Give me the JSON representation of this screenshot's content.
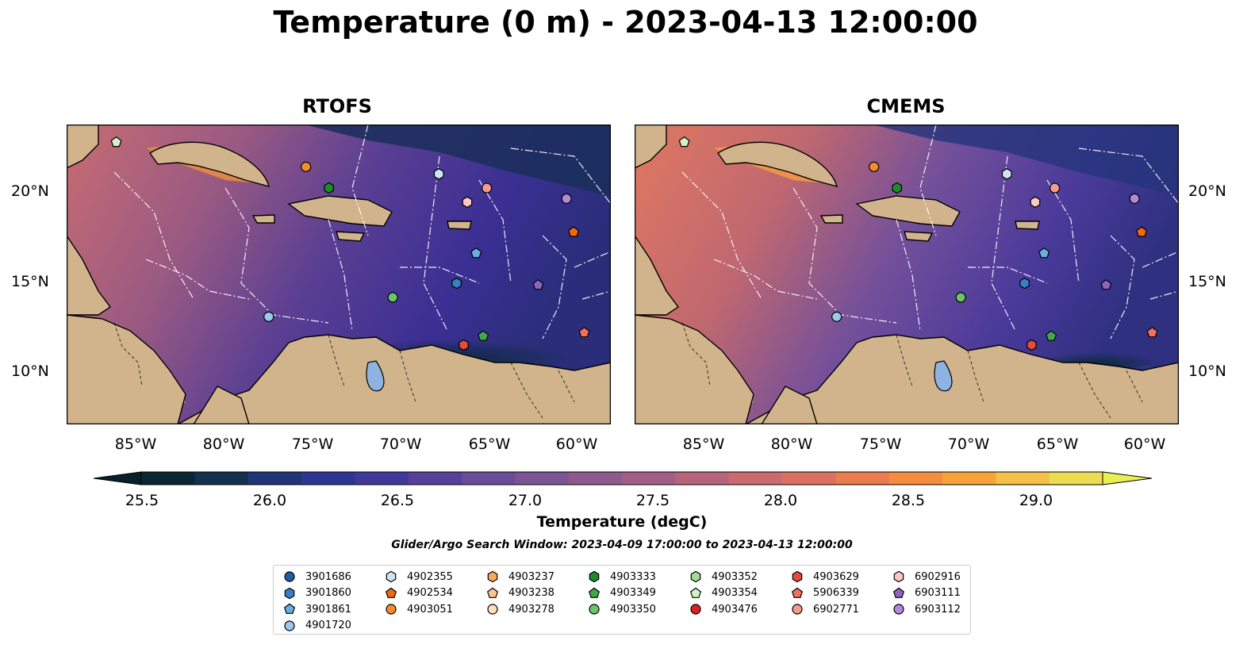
{
  "title": "Temperature (0 m) - 2023-04-13 12:00:00",
  "panels": [
    {
      "title": "RTOFS"
    },
    {
      "title": "CMEMS"
    }
  ],
  "axes": {
    "lat_labels": [
      "20°N",
      "15°N",
      "10°N"
    ],
    "lon_labels": [
      "85°W",
      "80°W",
      "75°W",
      "70°W",
      "65°W",
      "60°W"
    ],
    "lon_range": [
      -88.5,
      -57.8
    ],
    "lat_range": [
      7,
      24
    ]
  },
  "colorbar": {
    "label": "Temperature (degC)",
    "ticks": [
      "25.5",
      "26.0",
      "26.5",
      "27.0",
      "27.5",
      "28.0",
      "28.5",
      "29.0"
    ],
    "tick_values": [
      25.5,
      26.0,
      26.5,
      27.0,
      27.5,
      28.0,
      28.5,
      29.0
    ],
    "range": [
      25.25,
      29.25
    ],
    "colormap": "thermal",
    "extend": "both"
  },
  "search_window": "Glider/Argo Search Window: 2023-04-09 17:00:00 to 2023-04-13 12:00:00",
  "colors": {
    "land": "#d2b48c",
    "lake": "#8fb3e0",
    "ocean_low": "#0a2a3a",
    "ocean_high": "#f0f050"
  },
  "legend": [
    {
      "id": "3901686",
      "marker": "circle",
      "color": "#1f5fa6"
    },
    {
      "id": "3901860",
      "marker": "hexagon",
      "color": "#3a7fc6"
    },
    {
      "id": "3901861",
      "marker": "pentagon",
      "color": "#6aaee0"
    },
    {
      "id": "4901720",
      "marker": "circle",
      "color": "#9cc8ec"
    },
    {
      "id": "4902355",
      "marker": "hexagon",
      "color": "#cfe3f5"
    },
    {
      "id": "4902534",
      "marker": "pentagon",
      "color": "#ee6a10"
    },
    {
      "id": "4903051",
      "marker": "circle",
      "color": "#f58c2c"
    },
    {
      "id": "4903237",
      "marker": "hexagon",
      "color": "#f9a85c"
    },
    {
      "id": "4903238",
      "marker": "pentagon",
      "color": "#fbc690"
    },
    {
      "id": "4903278",
      "marker": "circle",
      "color": "#fde0c0"
    },
    {
      "id": "4903333",
      "marker": "hexagon",
      "color": "#1d8a2c"
    },
    {
      "id": "4903349",
      "marker": "pentagon",
      "color": "#3fa84a"
    },
    {
      "id": "4903350",
      "marker": "circle",
      "color": "#6cc46a"
    },
    {
      "id": "4903352",
      "marker": "hexagon",
      "color": "#a2dc96"
    },
    {
      "id": "4903354",
      "marker": "pentagon",
      "color": "#d3f0c8"
    },
    {
      "id": "4903476",
      "marker": "circle",
      "color": "#d9231f"
    },
    {
      "id": "4903629",
      "marker": "hexagon",
      "color": "#e34a40"
    },
    {
      "id": "5906339",
      "marker": "pentagon",
      "color": "#f07062"
    },
    {
      "id": "6902771",
      "marker": "circle",
      "color": "#f59a90"
    },
    {
      "id": "6902916",
      "marker": "hexagon",
      "color": "#fbc8c4"
    },
    {
      "id": "6903111",
      "marker": "pentagon",
      "color": "#8e62c0"
    },
    {
      "id": "6903112",
      "marker": "circle",
      "color": "#b08ad6"
    }
  ],
  "floats": [
    {
      "lon": -85.7,
      "lat": 23.0,
      "marker": "pentagon",
      "color": "#d3f0c8"
    },
    {
      "lon": -75.0,
      "lat": 21.6,
      "marker": "circle",
      "color": "#f58c2c"
    },
    {
      "lon": -73.7,
      "lat": 20.4,
      "marker": "hexagon",
      "color": "#1d8a2c"
    },
    {
      "lon": -67.5,
      "lat": 21.2,
      "marker": "hexagon",
      "color": "#cfe3f5"
    },
    {
      "lon": -64.8,
      "lat": 20.4,
      "marker": "circle",
      "color": "#f59a90"
    },
    {
      "lon": -65.9,
      "lat": 19.6,
      "marker": "hexagon",
      "color": "#fbc8c4"
    },
    {
      "lon": -60.3,
      "lat": 19.8,
      "marker": "circle",
      "color": "#b08ad6"
    },
    {
      "lon": -59.9,
      "lat": 17.9,
      "marker": "pentagon",
      "color": "#ee6a10"
    },
    {
      "lon": -65.4,
      "lat": 16.7,
      "marker": "pentagon",
      "color": "#6aaee0"
    },
    {
      "lon": -66.5,
      "lat": 15.0,
      "marker": "hexagon",
      "color": "#3a7fc6"
    },
    {
      "lon": -61.9,
      "lat": 14.9,
      "marker": "pentagon",
      "color": "#8e62c0"
    },
    {
      "lon": -70.1,
      "lat": 14.2,
      "marker": "circle",
      "color": "#6cc46a"
    },
    {
      "lon": -77.1,
      "lat": 13.1,
      "marker": "circle",
      "color": "#9cc8ec"
    },
    {
      "lon": -59.3,
      "lat": 12.2,
      "marker": "pentagon",
      "color": "#f07062"
    },
    {
      "lon": -65.0,
      "lat": 12.0,
      "marker": "pentagon",
      "color": "#3fa84a"
    },
    {
      "lon": -66.1,
      "lat": 11.5,
      "marker": "hexagon",
      "color": "#e34a40"
    }
  ]
}
